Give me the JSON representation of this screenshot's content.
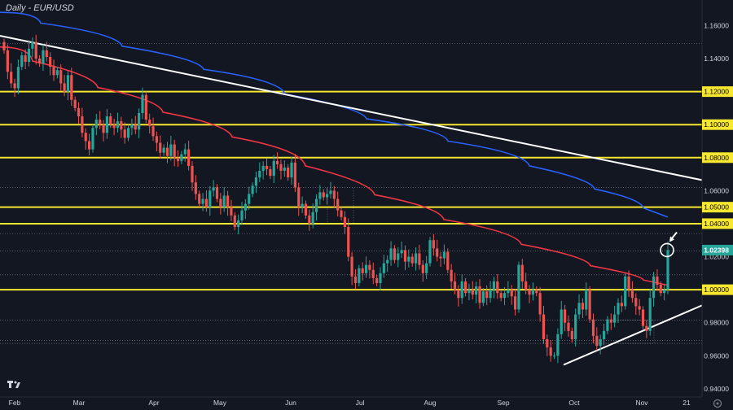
{
  "chart_data": {
    "type": "candlestick",
    "title": "Daily - EUR/USD",
    "ylim": [
      0.935,
      1.175
    ],
    "y_ticks": [
      "1.16000",
      "1.14000",
      "1.12000",
      "1.10000",
      "1.08000",
      "1.06000",
      "1.05000",
      "1.04000",
      "1.02000",
      "1.00000",
      "0.98000",
      "0.96000",
      "0.94000"
    ],
    "x_ticks": [
      "Feb",
      "Mar",
      "Apr",
      "May",
      "Jun",
      "Jul",
      "Aug",
      "Sep",
      "Oct",
      "Nov",
      "21"
    ],
    "last_price_label": "1.02398",
    "last_price": 1.02398,
    "horizontal_levels": [
      1.12,
      1.1,
      1.08,
      1.05,
      1.04,
      1.0
    ],
    "candles_close": [
      1.145,
      1.132,
      1.125,
      1.122,
      1.135,
      1.142,
      1.138,
      1.146,
      1.15,
      1.14,
      1.137,
      1.145,
      1.141,
      1.135,
      1.13,
      1.133,
      1.125,
      1.12,
      1.13,
      1.115,
      1.11,
      1.105,
      1.095,
      1.09,
      1.085,
      1.098,
      1.103,
      1.1,
      1.095,
      1.105,
      1.1,
      1.098,
      1.102,
      1.097,
      1.092,
      1.098,
      1.1,
      1.097,
      1.107,
      1.118,
      1.103,
      1.099,
      1.093,
      1.089,
      1.083,
      1.086,
      1.081,
      1.088,
      1.08,
      1.078,
      1.082,
      1.085,
      1.075,
      1.065,
      1.058,
      1.052,
      1.055,
      1.05,
      1.06,
      1.062,
      1.055,
      1.05,
      1.057,
      1.05,
      1.045,
      1.038,
      1.042,
      1.048,
      1.052,
      1.058,
      1.063,
      1.068,
      1.072,
      1.075,
      1.073,
      1.069,
      1.078,
      1.076,
      1.072,
      1.074,
      1.068,
      1.077,
      1.062,
      1.05,
      1.052,
      1.045,
      1.04,
      1.047,
      1.055,
      1.059,
      1.056,
      1.058,
      1.06,
      1.055,
      1.048,
      1.044,
      1.038,
      1.02,
      1.008,
      1.004,
      1.013,
      1.01,
      1.015,
      1.012,
      1.007,
      1.004,
      1.01,
      1.016,
      1.018,
      1.025,
      1.018,
      1.022,
      1.024,
      1.017,
      1.02,
      1.016,
      1.022,
      1.015,
      1.01,
      1.016,
      1.03,
      1.025,
      1.02,
      1.019,
      1.023,
      1.012,
      1.005,
      1.0,
      0.995,
      1.005,
      0.998,
      1.0,
      0.997,
      1.002,
      0.992,
      0.999,
      0.995,
      1.0,
      1.005,
      0.998,
      0.995,
      0.998,
      1.0,
      0.996,
      0.988,
      1.015,
      1.005,
      1.0,
      0.997,
      1.0,
      0.998,
      0.985,
      0.97,
      0.965,
      0.96,
      0.96,
      0.973,
      0.988,
      0.98,
      0.975,
      0.97,
      0.985,
      0.992,
      0.988,
      1.0,
      0.982,
      0.972,
      0.966,
      0.97,
      0.975,
      0.982,
      0.98,
      0.985,
      0.992,
      0.99,
      1.008,
      1.0,
      0.995,
      0.99,
      0.988,
      0.978,
      0.975,
      0.995,
      1.008,
      1.003,
      0.998,
      1.0,
      1.024
    ],
    "series": [
      {
        "name": "",
        "color": "#f23645",
        "values": [
          [
            1.147,
            1.147
          ],
          [
            1.135,
            1.13
          ],
          [
            1.12,
            1.115
          ],
          [
            1.1,
            1.1
          ],
          [
            1.085,
            1.085
          ],
          [
            1.065,
            1.065
          ],
          [
            1.05,
            1.05
          ],
          [
            1.035,
            1.035
          ],
          [
            1.02,
            1.02
          ],
          [
            1.009,
            1.009
          ],
          [
            1.0027,
            1.0027
          ]
        ]
      },
      {
        "name": "",
        "color": "#2962ff",
        "values": [
          [
            1.168,
            1.168
          ],
          [
            1.155,
            1.155
          ],
          [
            1.14,
            1.14
          ],
          [
            1.127,
            1.127
          ],
          [
            1.11,
            1.11
          ],
          [
            1.097,
            1.097
          ],
          [
            1.083,
            1.083
          ],
          [
            1.067,
            1.067
          ],
          [
            1.055,
            1.055
          ],
          [
            1.044,
            1.044
          ]
        ]
      }
    ]
  }
}
